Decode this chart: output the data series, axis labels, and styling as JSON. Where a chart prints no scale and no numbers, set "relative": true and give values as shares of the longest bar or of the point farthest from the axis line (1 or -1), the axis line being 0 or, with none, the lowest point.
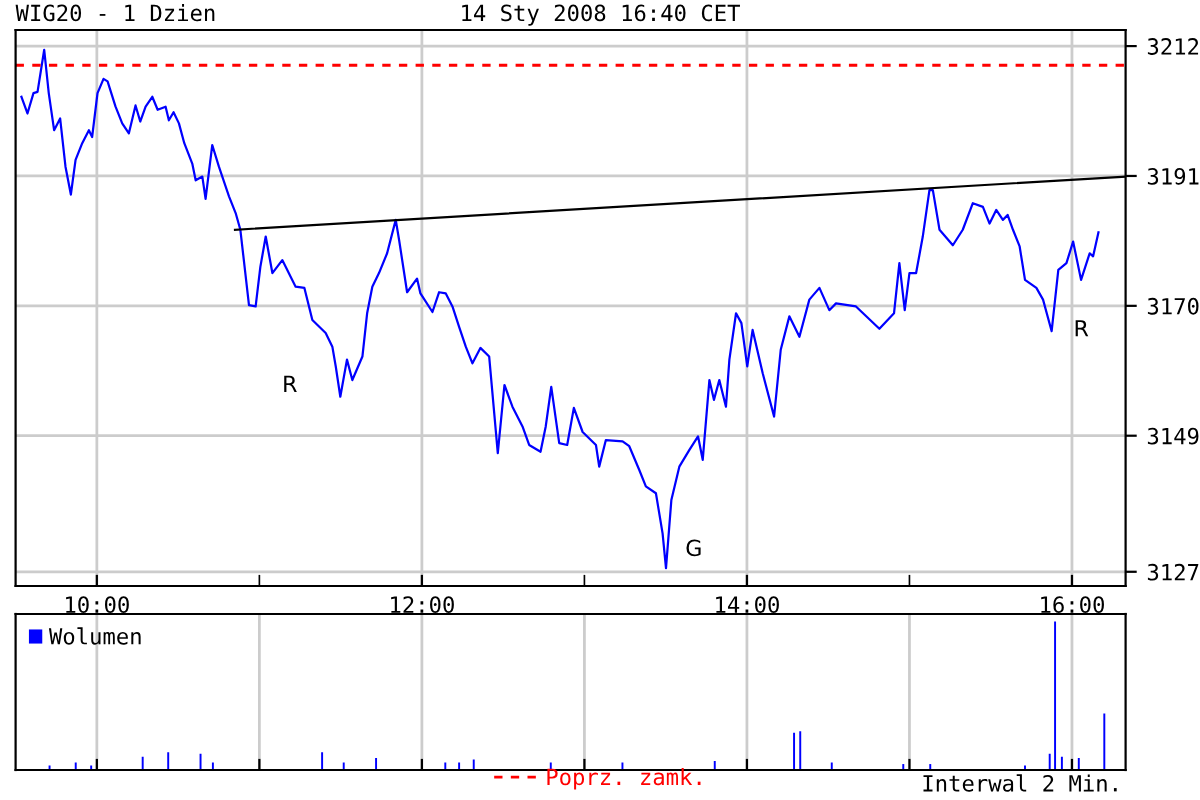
{
  "chart_data": [
    {
      "type": "line",
      "title": "WIG20 - 1 Dzien",
      "subtitle": "14 Sty 2008 16:40 CET",
      "xlim": [
        9.5,
        16.33
      ],
      "xticks": [
        {
          "value": 10,
          "label": "10:00"
        },
        {
          "value": 11,
          "label": null
        },
        {
          "value": 12,
          "label": "12:00"
        },
        {
          "value": 13,
          "label": null
        },
        {
          "value": 14,
          "label": "14:00"
        },
        {
          "value": 15,
          "label": null
        },
        {
          "value": 16,
          "label": "16:00"
        }
      ],
      "ylim": [
        3124.7,
        3214.6
      ],
      "yticks": [
        3127,
        3149,
        3170,
        3191,
        3212
      ],
      "grid": true,
      "legend": "bottom",
      "series": [
        {
          "color": "#0000ff",
          "x": [
            9.536,
            9.573,
            9.61,
            9.635,
            9.676,
            9.704,
            9.737,
            9.774,
            9.807,
            9.84,
            9.869,
            9.91,
            9.951,
            9.971,
            10.004,
            10.041,
            10.066,
            10.115,
            10.156,
            10.197,
            10.238,
            10.267,
            10.3,
            10.341,
            10.374,
            10.423,
            10.443,
            10.472,
            10.505,
            10.538,
            10.587,
            10.608,
            10.649,
            10.669,
            10.71,
            10.751,
            10.813,
            10.854,
            10.883,
            10.936,
            10.977,
            11.006,
            11.039,
            11.08,
            11.141,
            11.223,
            11.277,
            11.326,
            11.408,
            11.449,
            11.47,
            11.498,
            11.539,
            11.572,
            11.634,
            11.663,
            11.695,
            11.736,
            11.786,
            11.839,
            11.86,
            11.909,
            11.97,
            11.991,
            12.065,
            12.106,
            12.147,
            12.188,
            12.229,
            12.27,
            12.311,
            12.36,
            12.414,
            12.467,
            12.508,
            12.557,
            12.619,
            12.66,
            12.73,
            12.762,
            12.796,
            12.845,
            12.894,
            12.935,
            12.989,
            13.071,
            13.091,
            13.132,
            13.235,
            13.276,
            13.337,
            13.378,
            13.44,
            13.481,
            13.502,
            13.535,
            13.584,
            13.646,
            13.699,
            13.728,
            13.769,
            13.797,
            13.83,
            13.871,
            13.892,
            13.933,
            13.966,
            14.002,
            14.035,
            14.097,
            14.167,
            14.208,
            14.261,
            14.323,
            14.384,
            14.446,
            14.507,
            14.548,
            14.671,
            14.815,
            14.905,
            14.938,
            14.971,
            15.0,
            15.041,
            15.082,
            15.123,
            15.144,
            15.185,
            15.267,
            15.328,
            15.39,
            15.452,
            15.493,
            15.534,
            15.575,
            15.604,
            15.637,
            15.678,
            15.711,
            15.781,
            15.822,
            15.875,
            15.916,
            15.966,
            16.007,
            16.056,
            16.109,
            16.13,
            16.163
          ],
          "values": [
            3203.8,
            3201.1,
            3204.4,
            3204.6,
            3211.4,
            3204.4,
            3198.4,
            3200.3,
            3192.5,
            3188.0,
            3193.6,
            3196.3,
            3198.4,
            3197.3,
            3204.4,
            3206.7,
            3206.3,
            3202.2,
            3199.5,
            3197.9,
            3202.4,
            3199.8,
            3202.2,
            3203.8,
            3201.7,
            3202.2,
            3200.0,
            3201.3,
            3199.5,
            3196.3,
            3193.0,
            3190.3,
            3190.9,
            3187.3,
            3196.0,
            3192.5,
            3187.7,
            3185.0,
            3182.3,
            3170.1,
            3169.9,
            3176.3,
            3181.2,
            3175.3,
            3177.4,
            3173.1,
            3172.9,
            3167.7,
            3165.6,
            3163.4,
            3160.2,
            3155.3,
            3161.3,
            3158.0,
            3161.8,
            3168.8,
            3173.1,
            3175.3,
            3178.5,
            3183.9,
            3180.6,
            3172.2,
            3174.4,
            3172.0,
            3169.0,
            3172.2,
            3172.0,
            3169.9,
            3166.6,
            3163.4,
            3160.7,
            3163.2,
            3161.8,
            3146.2,
            3157.2,
            3153.7,
            3150.5,
            3147.5,
            3146.4,
            3150.5,
            3156.9,
            3147.8,
            3147.5,
            3153.5,
            3149.6,
            3147.5,
            3144.0,
            3148.3,
            3148.1,
            3147.3,
            3143.5,
            3140.8,
            3139.7,
            3133.2,
            3127.6,
            3138.6,
            3144.0,
            3146.7,
            3148.9,
            3145.1,
            3158.0,
            3154.8,
            3158.0,
            3153.7,
            3161.3,
            3168.8,
            3167.2,
            3160.2,
            3166.1,
            3159.1,
            3152.1,
            3162.9,
            3168.3,
            3165.0,
            3171.0,
            3172.9,
            3169.3,
            3170.4,
            3169.9,
            3166.3,
            3168.8,
            3176.9,
            3169.3,
            3175.3,
            3175.3,
            3181.2,
            3188.7,
            3188.7,
            3182.3,
            3179.8,
            3182.3,
            3186.6,
            3186.0,
            3183.3,
            3185.5,
            3183.9,
            3184.7,
            3182.3,
            3179.6,
            3174.2,
            3172.9,
            3171.0,
            3165.9,
            3175.8,
            3176.9,
            3180.4,
            3174.2,
            3178.5,
            3178.0,
            3181.9
          ]
        },
        {
          "type": "line",
          "color": "#000000",
          "x": [
            10.85,
            16.33
          ],
          "values": [
            3182.3,
            3190.9
          ]
        }
      ],
      "ref_lines": [
        {
          "axis": "y",
          "value": 3208.9,
          "label": "Poprz. zamk.",
          "color": "#ff0000",
          "line_style": "dashed"
        }
      ],
      "annotations": [
        "R",
        "G",
        "R"
      ]
    },
    {
      "type": "bar",
      "relative": true,
      "xlim": [
        9.5,
        16.33
      ],
      "xticks": [
        10,
        11,
        12,
        13,
        14,
        15,
        16
      ],
      "tick_labels": false,
      "grid": "x",
      "legend": "top left",
      "series": [
        {
          "name": "Wolumen",
          "color": "#0000ff",
          "x": [
            9.709,
            9.87,
            9.965,
            10.282,
            10.439,
            10.638,
            10.714,
            11.386,
            11.519,
            11.718,
            12.144,
            12.229,
            12.319,
            12.793,
            13.234,
            13.802,
            14.29,
            14.328,
            14.522,
            14.962,
            15.128,
            15.711,
            15.863,
            15.896,
            15.938,
            16.042,
            16.199
          ],
          "values": [
            0.03,
            0.05,
            0.03,
            0.09,
            0.12,
            0.11,
            0.05,
            0.12,
            0.05,
            0.08,
            0.05,
            0.05,
            0.07,
            0.05,
            0.05,
            0.06,
            0.25,
            0.26,
            0.05,
            0.04,
            0.04,
            0.03,
            0.11,
            1.0,
            0.09,
            0.08,
            0.38
          ]
        }
      ],
      "annotations": [
        "Interwal 2 Min."
      ]
    }
  ]
}
